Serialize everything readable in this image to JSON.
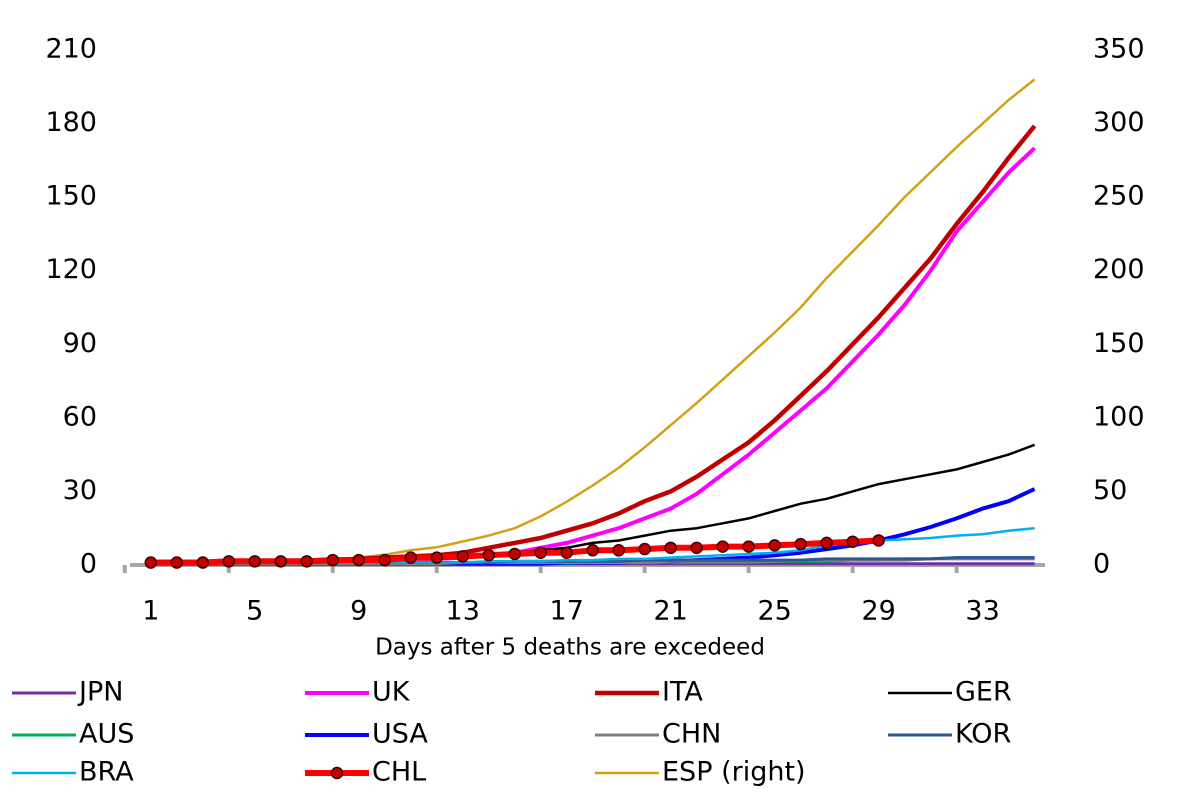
{
  "chart_data": {
    "type": "line",
    "x_label": "Days after 5 deaths are excedeed",
    "x": [
      1,
      2,
      3,
      4,
      5,
      6,
      7,
      8,
      9,
      10,
      11,
      12,
      13,
      14,
      15,
      16,
      17,
      18,
      19,
      20,
      21,
      22,
      23,
      24,
      25,
      26,
      27,
      28,
      29,
      30,
      31,
      32,
      33,
      34,
      35
    ],
    "xlim": [
      0.2,
      35.4
    ],
    "xticks": [
      1,
      5,
      9,
      13,
      17,
      21,
      25,
      29,
      33
    ],
    "ylim": [
      0,
      210
    ],
    "yticks": [
      0,
      30,
      60,
      90,
      120,
      150,
      180,
      210
    ],
    "y2lim": [
      0,
      350
    ],
    "y2ticks": [
      0,
      50,
      100,
      150,
      200,
      250,
      300,
      350
    ],
    "series": [
      {
        "name": "JPN",
        "color": "#7030a0",
        "width": 3,
        "values": [
          0.5,
          0.5,
          0.5,
          0.5,
          0.5,
          0.5,
          0.5,
          0.5,
          0.5,
          0.5,
          0.5,
          0.5,
          0.5,
          0.5,
          0.5,
          0.5,
          0.5,
          0.5,
          0.5,
          0.5,
          0.5,
          0.5,
          0.5,
          0.5,
          0.5,
          0.5,
          0.5,
          0.5,
          0.5,
          0.5,
          0.5,
          0.5,
          0.5,
          0.5,
          0.5
        ]
      },
      {
        "name": "UK",
        "color": "#ff00ff",
        "width": 4,
        "values": [
          1,
          1,
          1,
          1,
          1,
          1,
          1.5,
          1.5,
          2,
          2,
          2.5,
          2.5,
          3,
          4,
          5,
          7,
          9,
          12,
          15,
          19,
          23,
          29,
          37,
          45,
          54,
          63,
          72,
          83,
          94,
          106,
          120,
          136,
          148,
          160,
          170
        ]
      },
      {
        "name": "ITA",
        "color": "#c00000",
        "width": 4.5,
        "values": [
          1,
          1,
          1,
          1,
          1,
          1,
          1.5,
          2,
          2.5,
          3,
          3.5,
          4,
          5,
          7,
          9,
          11,
          14,
          17,
          21,
          26,
          30,
          36,
          43,
          50,
          59,
          69,
          79,
          90,
          101,
          113,
          125,
          139,
          152,
          166,
          179
        ]
      },
      {
        "name": "GER",
        "color": "#000000",
        "width": 2.5,
        "values": [
          1,
          1,
          1,
          1,
          1,
          1,
          1,
          1,
          1.5,
          2,
          2.5,
          3,
          3.5,
          4,
          5,
          6,
          7,
          9,
          10,
          12,
          14,
          15,
          17,
          19,
          22,
          25,
          27,
          30,
          33,
          35,
          37,
          39,
          42,
          45,
          49
        ]
      },
      {
        "name": "AUS",
        "color": "#00b050",
        "width": 3,
        "values": [
          0.5,
          0.5,
          0.5,
          0.5,
          0.5,
          0.5,
          0.5,
          0.5,
          0.5,
          0.5,
          0.5,
          0.5,
          0.5,
          0.5,
          0.5,
          0.5,
          0.5,
          1,
          1,
          1,
          1,
          1,
          1,
          1,
          1.5,
          1.5,
          1.5,
          2,
          2,
          2.5,
          2.5,
          3,
          3,
          3,
          3
        ]
      },
      {
        "name": "USA",
        "color": "#0000ff",
        "width": 4,
        "values": [
          0.5,
          0.5,
          0.5,
          0.5,
          0.5,
          0.5,
          0.5,
          0.5,
          0.5,
          0.5,
          0.5,
          0.5,
          0.5,
          0.5,
          0.5,
          0.5,
          1,
          1,
          1,
          1.5,
          1.5,
          2,
          2.5,
          3,
          4,
          5,
          6.5,
          8,
          10,
          12.5,
          15.5,
          19,
          23,
          26,
          31
        ]
      },
      {
        "name": "CHN",
        "color": "#808080",
        "width": 3,
        "values": [
          0.5,
          0.5,
          0.5,
          0.5,
          0.5,
          0.5,
          0.5,
          0.5,
          0.5,
          0.5,
          0.5,
          0.5,
          1,
          1,
          1,
          1,
          1,
          1,
          1,
          1,
          1.5,
          1.5,
          1.5,
          1.5,
          1.5,
          2,
          2,
          2,
          2,
          2,
          2.5,
          2.5,
          2.5,
          2.5,
          2.5
        ]
      },
      {
        "name": "KOR",
        "color": "#2f5597",
        "width": 3,
        "values": [
          1,
          1,
          1,
          1,
          1,
          1,
          1,
          1,
          1,
          1,
          1,
          1,
          1,
          1,
          1.5,
          1.5,
          1.5,
          1.5,
          1.5,
          2,
          2,
          2,
          2,
          2,
          2,
          2,
          2.5,
          2.5,
          2.5,
          2.5,
          2.5,
          3,
          3,
          3,
          3
        ]
      },
      {
        "name": "BRA",
        "color": "#00b0f0",
        "width": 2.5,
        "values": [
          1,
          1,
          1,
          1,
          1,
          1,
          1,
          1,
          1,
          1,
          1,
          1,
          1,
          1.5,
          1.5,
          1.5,
          2,
          2,
          2.5,
          2.5,
          3,
          3.5,
          4,
          4.5,
          5,
          6,
          8,
          9,
          10,
          10.5,
          11,
          12,
          12.5,
          14,
          15
        ]
      },
      {
        "name": "CHL",
        "color": "#ff0000",
        "width": 6,
        "marker": true,
        "marker_color": "#c00000",
        "values": [
          1,
          1,
          1,
          1.5,
          1.5,
          1.5,
          1.5,
          2,
          2,
          2,
          3,
          3,
          3.5,
          4,
          4.5,
          5,
          5,
          6,
          6,
          6.5,
          7,
          7,
          7.5,
          7.5,
          8,
          8.5,
          9,
          9.5,
          10,
          null,
          null,
          null,
          null,
          null,
          null
        ]
      },
      {
        "name": "ESP (right)",
        "color": "#d4a017",
        "width": 2.5,
        "axis": "y2",
        "values": [
          1,
          1,
          1,
          1,
          2,
          2,
          3,
          4,
          5,
          7,
          10,
          12,
          16,
          20,
          25,
          33,
          43,
          54,
          66,
          80,
          95,
          110,
          126,
          142,
          158,
          175,
          195,
          213,
          231,
          250,
          267,
          284,
          300,
          316,
          330
        ]
      }
    ]
  }
}
